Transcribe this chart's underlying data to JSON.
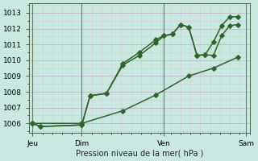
{
  "bg_color": "#c8e8e0",
  "grid_major_color": "#c0b8c8",
  "grid_minor_color": "#d0c8d8",
  "line_color": "#2d6629",
  "ylim": [
    1005.4,
    1013.6
  ],
  "yticks": [
    1006,
    1007,
    1008,
    1009,
    1010,
    1011,
    1012,
    1013
  ],
  "xtick_labels": [
    "Jeu",
    "Dim",
    "Ven",
    "Sam"
  ],
  "xtick_positions": [
    0,
    3,
    8,
    13
  ],
  "vline_positions": [
    0,
    3,
    8,
    13
  ],
  "xlabel": "Pression niveau de la mer( hPa )",
  "line1_x": [
    0,
    0.5,
    3.0,
    3.5,
    4.5,
    5.5,
    6.5,
    7.5,
    8.0,
    8.5,
    9.0,
    9.5,
    10.0,
    10.5,
    11.0,
    11.5,
    12.0,
    12.5
  ],
  "line1_y": [
    1006.0,
    1005.8,
    1005.9,
    1007.75,
    1007.9,
    1009.7,
    1010.3,
    1011.1,
    1011.55,
    1011.65,
    1012.25,
    1012.1,
    1010.3,
    1010.35,
    1010.3,
    1011.55,
    1012.2,
    1012.25
  ],
  "line2_x": [
    0,
    0.5,
    3.0,
    3.5,
    4.5,
    5.5,
    6.5,
    7.5,
    8.0,
    8.5,
    9.0,
    9.5,
    10.0,
    10.5,
    11.0,
    11.5,
    12.0,
    12.5
  ],
  "line2_y": [
    1006.0,
    1005.8,
    1005.9,
    1007.75,
    1007.9,
    1009.8,
    1010.5,
    1011.3,
    1011.55,
    1011.65,
    1012.25,
    1012.1,
    1010.3,
    1010.35,
    1011.15,
    1012.2,
    1012.75,
    1012.75
  ],
  "line3_x": [
    0,
    3.0,
    5.5,
    7.5,
    9.5,
    11.0,
    12.5
  ],
  "line3_y": [
    1006.0,
    1006.0,
    1006.8,
    1007.8,
    1009.0,
    1009.5,
    1010.2
  ]
}
